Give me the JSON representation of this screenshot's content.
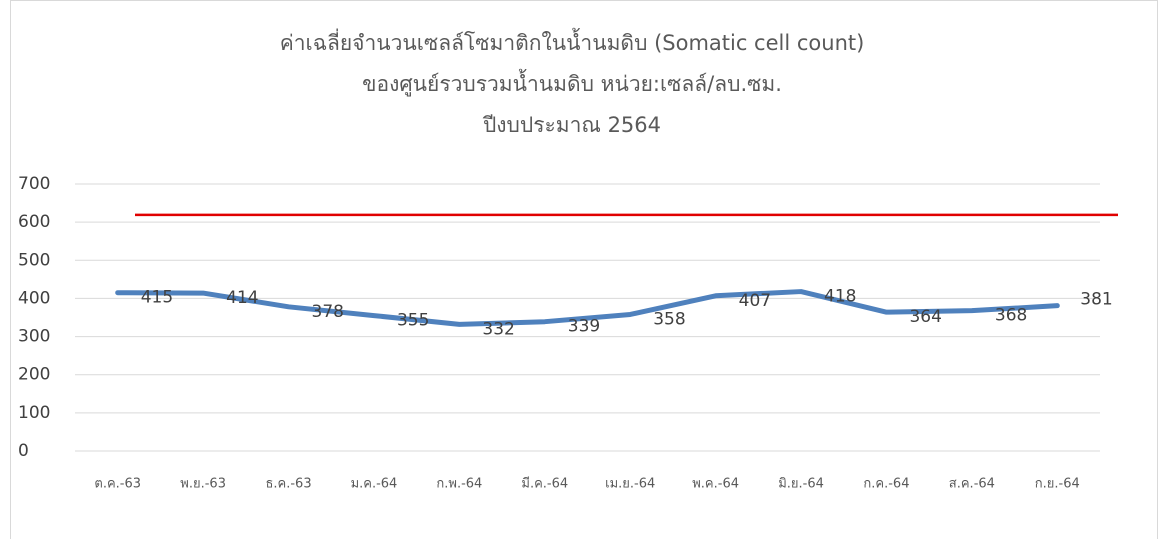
{
  "chart_data": {
    "type": "line",
    "title": [
      "ค่าเฉลี่ยจำนวนเซลล์โซมาติกในน้ำนมดิบ (Somatic cell count)",
      "ของศูนย์รวบรวมน้ำนมดิบ หน่วย:เซลล์/ลบ.ซม.",
      "ปีงบประมาณ 2564"
    ],
    "categories": [
      "ต.ค.-63",
      "พ.ย.-63",
      "ธ.ค.-63",
      "ม.ค.-64",
      "ก.พ.-64",
      "มี.ค.-64",
      "เม.ย.-64",
      "พ.ค.-64",
      "มิ.ย.-64",
      "ก.ค.-64",
      "ส.ค.-64",
      "ก.ย.-64"
    ],
    "values": [
      415,
      414,
      378,
      355,
      332,
      339,
      358,
      407,
      418,
      364,
      368,
      381
    ],
    "color": "#4f81bd",
    "threshold": 619,
    "threshold_color": "#e00000",
    "ylim": [
      0,
      700
    ],
    "yticks": [
      0,
      100,
      200,
      300,
      400,
      500,
      600,
      700
    ],
    "grid": true
  }
}
